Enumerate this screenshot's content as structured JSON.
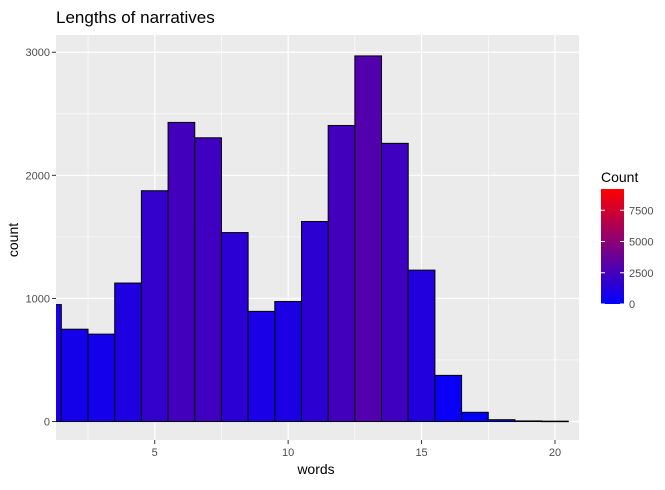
{
  "chart_data": {
    "type": "bar",
    "subtype": "histogram",
    "title": "Lengths of narratives",
    "xlabel": "words",
    "ylabel": "count",
    "xlim": [
      1.3,
      20.9
    ],
    "ylim": [
      -150,
      3140
    ],
    "x_ticks": [
      5,
      10,
      15,
      20
    ],
    "y_ticks": [
      0,
      1000,
      2000,
      3000
    ],
    "bin_width": 1,
    "grid": true,
    "bins": [
      {
        "x": 1,
        "count": 950
      },
      {
        "x": 2,
        "count": 750
      },
      {
        "x": 3,
        "count": 710
      },
      {
        "x": 4,
        "count": 1125
      },
      {
        "x": 5,
        "count": 1875
      },
      {
        "x": 6,
        "count": 2430
      },
      {
        "x": 7,
        "count": 2305
      },
      {
        "x": 8,
        "count": 1535
      },
      {
        "x": 9,
        "count": 895
      },
      {
        "x": 10,
        "count": 975
      },
      {
        "x": 11,
        "count": 1625
      },
      {
        "x": 12,
        "count": 2405
      },
      {
        "x": 13,
        "count": 2970
      },
      {
        "x": 14,
        "count": 2260
      },
      {
        "x": 15,
        "count": 1230
      },
      {
        "x": 16,
        "count": 375
      },
      {
        "x": 17,
        "count": 75
      },
      {
        "x": 18,
        "count": 15
      },
      {
        "x": 19,
        "count": 5
      },
      {
        "x": 20,
        "count": 3
      }
    ],
    "legend": {
      "title": "Count",
      "position": "right",
      "scale_min": 0,
      "scale_max": 9200,
      "low_color": "#0000ff",
      "high_color": "#ff0000",
      "breaks": [
        0,
        2500,
        5000,
        7500
      ],
      "break_labels": [
        "0",
        "2500",
        "5000",
        "7500"
      ]
    },
    "panel_color": "#ebebeb",
    "grid_color": "#ffffff",
    "bar_outline": "#000000"
  }
}
